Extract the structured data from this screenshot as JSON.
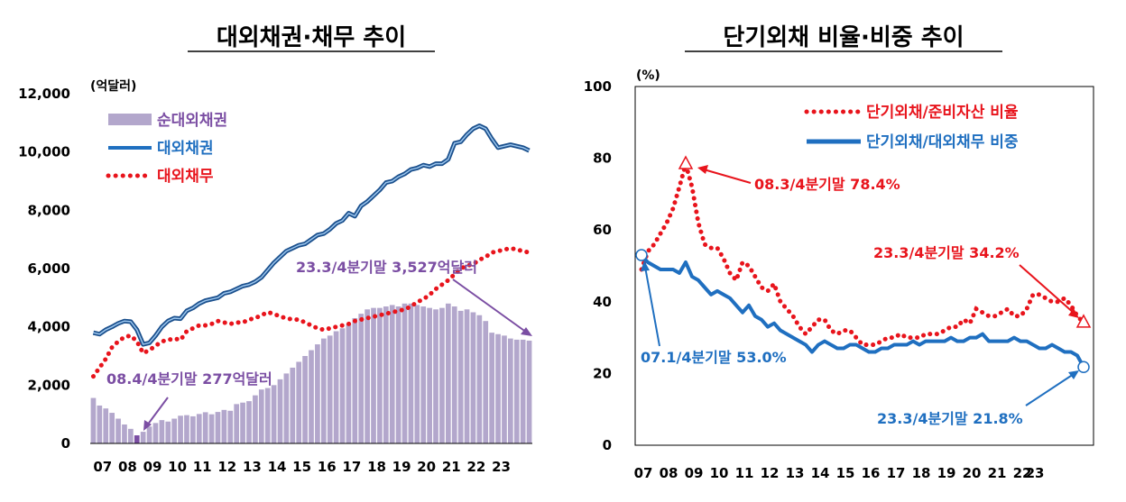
{
  "chart_data": [
    {
      "type": "bar+line",
      "title": "대외채권·채무 추이",
      "unit_label": "(억달러)",
      "ylim": [
        0,
        12000
      ],
      "yticks": [
        "0",
        "2,000",
        "4,000",
        "6,000",
        "8,000",
        "10,000",
        "12,000"
      ],
      "xticks": [
        "07",
        "08",
        "09",
        "10",
        "11",
        "12",
        "13",
        "14",
        "15",
        "16",
        "17",
        "18",
        "19",
        "20",
        "21",
        "22",
        "23"
      ],
      "x_start_year": 2007,
      "series": [
        {
          "name": "순대외채권",
          "kind": "bar",
          "color": "#b3a7cc",
          "highlight_color": "#7b4ea3",
          "values": [
            1560,
            1300,
            1200,
            1050,
            850,
            650,
            500,
            277,
            400,
            580,
            700,
            800,
            750,
            850,
            950,
            970,
            930,
            1010,
            1070,
            1000,
            1080,
            1150,
            1120,
            1350,
            1400,
            1450,
            1650,
            1850,
            1900,
            2000,
            2200,
            2400,
            2600,
            2800,
            3000,
            3200,
            3400,
            3600,
            3700,
            3850,
            3950,
            4100,
            4300,
            4450,
            4600,
            4650,
            4650,
            4700,
            4750,
            4700,
            4800,
            4800,
            4750,
            4700,
            4650,
            4600,
            4650,
            4800,
            4700,
            4550,
            4600,
            4500,
            4400,
            4200,
            3800,
            3750,
            3700,
            3600,
            3560,
            3560,
            3527
          ]
        },
        {
          "name": "대외채권",
          "kind": "line",
          "color": "#1f6fc0",
          "values": [
            3800,
            3750,
            3900,
            4000,
            4120,
            4200,
            4180,
            3900,
            3400,
            3450,
            3700,
            4000,
            4200,
            4300,
            4280,
            4550,
            4650,
            4800,
            4900,
            4950,
            5000,
            5150,
            5200,
            5300,
            5400,
            5450,
            5550,
            5700,
            5950,
            6200,
            6400,
            6600,
            6700,
            6800,
            6850,
            7000,
            7150,
            7200,
            7350,
            7550,
            7650,
            7900,
            7800,
            8150,
            8300,
            8500,
            8700,
            8950,
            9000,
            9150,
            9250,
            9400,
            9450,
            9550,
            9500,
            9600,
            9600,
            9750,
            10300,
            10350,
            10600,
            10800,
            10900,
            10800,
            10450,
            10150,
            10200,
            10250,
            10200,
            10150,
            10050
          ]
        },
        {
          "name": "대외채무",
          "kind": "dotted-line",
          "color": "#e8141c",
          "values": [
            2300,
            2600,
            2900,
            3300,
            3500,
            3650,
            3700,
            3500,
            3100,
            3200,
            3350,
            3500,
            3550,
            3600,
            3550,
            3850,
            3950,
            4050,
            4050,
            4100,
            4200,
            4150,
            4100,
            4150,
            4150,
            4250,
            4300,
            4400,
            4500,
            4450,
            4350,
            4300,
            4250,
            4250,
            4150,
            4050,
            3950,
            3900,
            3950,
            4000,
            4050,
            4100,
            4200,
            4250,
            4300,
            4350,
            4400,
            4450,
            4500,
            4550,
            4600,
            4700,
            4850,
            4950,
            5100,
            5300,
            5450,
            5600,
            5800,
            6000,
            6100,
            6150,
            6300,
            6400,
            6550,
            6600,
            6650,
            6700,
            6650,
            6600,
            6550
          ]
        }
      ],
      "annotations": [
        {
          "text": "23.3/4분기말 3,527억달러",
          "color": "#7b4ea3"
        },
        {
          "text": "08.4/4분기말 277억달러",
          "color": "#7b4ea3"
        }
      ],
      "legend_position": "top-left"
    },
    {
      "type": "line",
      "title": "단기외채 비율·비중 추이",
      "unit_label": "(%)",
      "ylim": [
        0,
        100
      ],
      "yticks": [
        "0",
        "20",
        "40",
        "60",
        "80",
        "100"
      ],
      "xticks": [
        "07",
        "08",
        "09",
        "10",
        "11",
        "12",
        "13",
        "14",
        "15",
        "16",
        "17",
        "18",
        "19",
        "20",
        "21",
        "22",
        "23"
      ],
      "x_start_year": 2007,
      "series": [
        {
          "name": "단기외채/준비자산 비율",
          "kind": "dotted-line",
          "color": "#e8141c",
          "values": [
            49,
            54,
            56,
            59,
            62,
            66,
            72,
            78.4,
            72,
            62,
            56,
            55,
            55,
            52,
            48,
            46,
            51,
            50,
            47,
            44,
            43,
            45,
            40,
            38,
            36,
            33,
            31,
            33,
            35,
            35,
            32,
            31,
            32,
            32,
            30,
            28,
            28,
            28,
            29,
            30,
            30,
            31,
            30,
            30,
            30,
            31,
            31,
            31,
            32,
            33,
            33,
            35,
            34,
            38,
            37,
            36,
            36,
            37,
            38,
            36,
            36,
            38,
            42,
            42,
            41,
            40,
            40,
            41,
            39,
            36,
            34.2
          ]
        },
        {
          "name": "단기외채/대외채무 비중",
          "kind": "line",
          "color": "#1f6fc0",
          "values": [
            53,
            51,
            50,
            49,
            49,
            49,
            48,
            51,
            47,
            46,
            44,
            42,
            43,
            42,
            41,
            39,
            37,
            39,
            36,
            35,
            33,
            34,
            32,
            31,
            30,
            29,
            28,
            26,
            28,
            29,
            28,
            27,
            27,
            28,
            28,
            27,
            26,
            26,
            27,
            27,
            28,
            28,
            28,
            29,
            28,
            29,
            29,
            29,
            29,
            30,
            29,
            29,
            30,
            30,
            31,
            29,
            29,
            29,
            29,
            30,
            29,
            29,
            28,
            27,
            27,
            28,
            27,
            26,
            26,
            25,
            21.8
          ]
        }
      ],
      "annotations": [
        {
          "text": "08.3/4분기말 78.4%",
          "color": "#e8141c"
        },
        {
          "text": "23.3/4분기말 34.2%",
          "color": "#e8141c"
        },
        {
          "text": "07.1/4분기말 53.0%",
          "color": "#1f6fc0"
        },
        {
          "text": "23.3/4분기말 21.8%",
          "color": "#1f6fc0"
        }
      ],
      "legend_position": "top-right"
    }
  ]
}
